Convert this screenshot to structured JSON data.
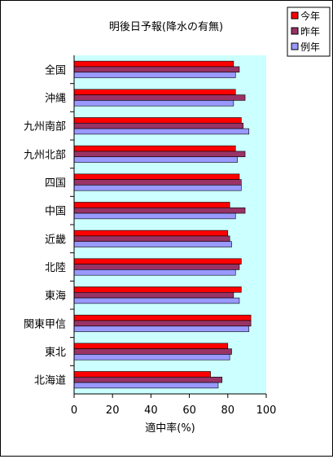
{
  "chart_data": {
    "type": "bar",
    "orientation": "horizontal",
    "title": "明後日予報(降水の有無)",
    "xlabel": "適中率(%)",
    "ylabel": "",
    "xlim": [
      0,
      100
    ],
    "xticks": [
      0,
      20,
      40,
      60,
      80,
      100
    ],
    "grid": false,
    "legend_position": "top-right",
    "plot_background": "#ccffff",
    "categories": [
      "全国",
      "沖縄",
      "九州南部",
      "九州北部",
      "四国",
      "中国",
      "近畿",
      "北陸",
      "東海",
      "関東甲信",
      "東北",
      "北海道"
    ],
    "series": [
      {
        "name": "今年",
        "color": "#ff0000",
        "values": [
          83,
          84,
          87,
          84,
          86,
          81,
          80,
          87,
          87,
          92,
          80,
          71
        ]
      },
      {
        "name": "昨年",
        "color": "#993366",
        "values": [
          86,
          89,
          88,
          89,
          87,
          89,
          81,
          86,
          83,
          92,
          82,
          77
        ]
      },
      {
        "name": "例年",
        "color": "#9999ff",
        "values": [
          84,
          83,
          91,
          85,
          87,
          84,
          82,
          84,
          86,
          91,
          81,
          75
        ]
      }
    ]
  }
}
